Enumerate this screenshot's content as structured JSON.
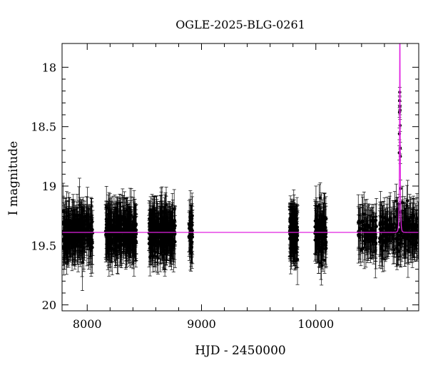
{
  "chart_data": {
    "type": "scatter",
    "title": "OGLE-2025-BLG-0261",
    "xlabel": "HJD - 2450000",
    "ylabel": "I magnitude",
    "xlim": [
      7780,
      10900
    ],
    "ylim": [
      20.05,
      17.8
    ],
    "y_inverted": true,
    "grid": false,
    "x_ticks": [
      8000,
      9000,
      10000
    ],
    "y_ticks": [
      18,
      18.5,
      19,
      19.5,
      20
    ],
    "x_tick_labels": [
      "8000",
      "9000",
      "10000"
    ],
    "y_tick_labels": [
      "18",
      "18.5",
      "19",
      "19.5",
      "20"
    ],
    "seasons": [
      {
        "start": 7790,
        "end": 8050,
        "n": 260
      },
      {
        "start": 8160,
        "end": 8430,
        "n": 280
      },
      {
        "start": 8540,
        "end": 8770,
        "n": 260
      },
      {
        "start": 8890,
        "end": 8925,
        "n": 40
      },
      {
        "start": 9770,
        "end": 9840,
        "n": 150
      },
      {
        "start": 9990,
        "end": 10090,
        "n": 90
      },
      {
        "start": 10370,
        "end": 10530,
        "n": 80
      },
      {
        "start": 10555,
        "end": 10900,
        "n": 200
      }
    ],
    "baseline_mag": 19.39,
    "typical_error": 0.16,
    "model": {
      "name": "model",
      "color": "#e020e0",
      "t0": 10735,
      "u0": 0.15,
      "tE": 6,
      "baseline": 19.39
    },
    "peak_points": [
      {
        "x": 10727,
        "y": 19.15,
        "err": 0.08
      },
      {
        "x": 10730,
        "y": 18.72,
        "err": 0.06
      },
      {
        "x": 10731,
        "y": 18.56,
        "err": 0.05
      },
      {
        "x": 10732,
        "y": 18.38,
        "err": 0.04
      },
      {
        "x": 10733,
        "y": 18.28,
        "err": 0.04
      },
      {
        "x": 10734,
        "y": 18.21,
        "err": 0.04
      },
      {
        "x": 10735,
        "y": 18.33,
        "err": 0.04
      },
      {
        "x": 10736,
        "y": 18.36,
        "err": 0.04
      },
      {
        "x": 10737,
        "y": 18.49,
        "err": 0.05
      },
      {
        "x": 10738,
        "y": 18.68,
        "err": 0.05
      },
      {
        "x": 10739,
        "y": 18.75,
        "err": 0.06
      },
      {
        "x": 10741,
        "y": 19.02,
        "err": 0.07
      },
      {
        "x": 10744,
        "y": 19.22,
        "err": 0.09
      }
    ],
    "data_color": "#000000"
  }
}
